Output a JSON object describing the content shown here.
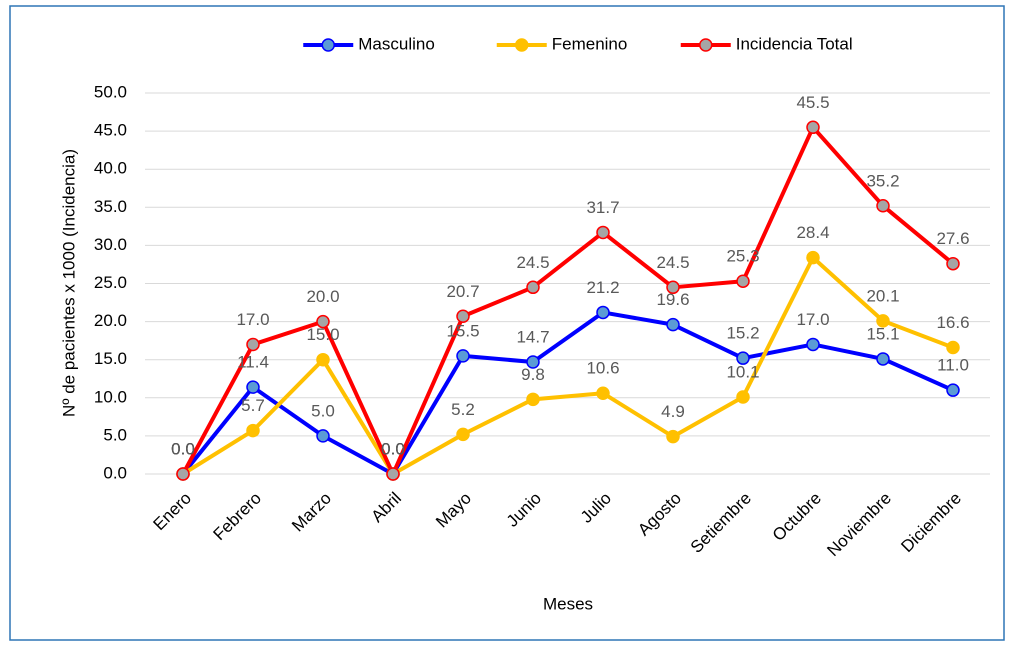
{
  "chart_data": {
    "type": "line",
    "x_label": "Meses",
    "y_label": "Nº de pacientes x 1000 (Incidencia)",
    "categories": [
      "Enero",
      "Febrero",
      "Marzo",
      "Abril",
      "Mayo",
      "Junio",
      "Julio",
      "Agosto",
      "Setiembre",
      "Octubre",
      "Noviembre",
      "Diciembre"
    ],
    "series": [
      {
        "name": "Masculino",
        "color": "#0000ff",
        "marker_color": "#5b9bd5",
        "values": [
          0,
          11.4,
          5,
          0,
          15.5,
          14.7,
          21.2,
          19.6,
          15.2,
          17,
          15.1,
          11
        ],
        "value_labels": [
          "0.0",
          "11.4",
          "5.0",
          "0.0",
          "15.5",
          "14.7",
          "21.2",
          "19.6",
          "15.2",
          "17.0",
          "15.1",
          "11.0"
        ]
      },
      {
        "name": "Femenino",
        "color": "#ffc000",
        "marker_color": "#ffc000",
        "values": [
          0,
          5.7,
          15,
          0,
          5.2,
          9.8,
          10.6,
          4.9,
          10.1,
          28.4,
          20.1,
          16.6
        ],
        "value_labels": [
          "0.0",
          "5.7",
          "15.0",
          "0.0",
          "5.2",
          "9.8",
          "10.6",
          "4.9",
          "10.1",
          "28.4",
          "20.1",
          "16.6"
        ]
      },
      {
        "name": "Incidencia Total",
        "color": "#ff0000",
        "marker_color": "#a5a5a5",
        "values": [
          0,
          17,
          20,
          0,
          20.7,
          24.5,
          31.7,
          24.5,
          25.3,
          45.5,
          35.2,
          27.6
        ],
        "value_labels": [
          "0.0",
          "17.0",
          "20.0",
          "0.0",
          "20.7",
          "24.5",
          "31.7",
          "24.5",
          "25.3",
          "45.5",
          "35.2",
          "27.6"
        ]
      }
    ],
    "ylim": [
      0,
      50
    ],
    "yticks": [
      {
        "value": 0,
        "label": "0.0"
      },
      {
        "value": 5,
        "label": "5.0"
      },
      {
        "value": 10,
        "label": "10.0"
      },
      {
        "value": 15,
        "label": "15.0"
      },
      {
        "value": 20,
        "label": "20.0"
      },
      {
        "value": 25,
        "label": "25.0"
      },
      {
        "value": 30,
        "label": "30.0"
      },
      {
        "value": 35,
        "label": "35.0"
      },
      {
        "value": 40,
        "label": "40.0"
      },
      {
        "value": 45,
        "label": "45.0"
      },
      {
        "value": 50,
        "label": "50.0"
      }
    ],
    "grid": true,
    "legend": "top"
  }
}
